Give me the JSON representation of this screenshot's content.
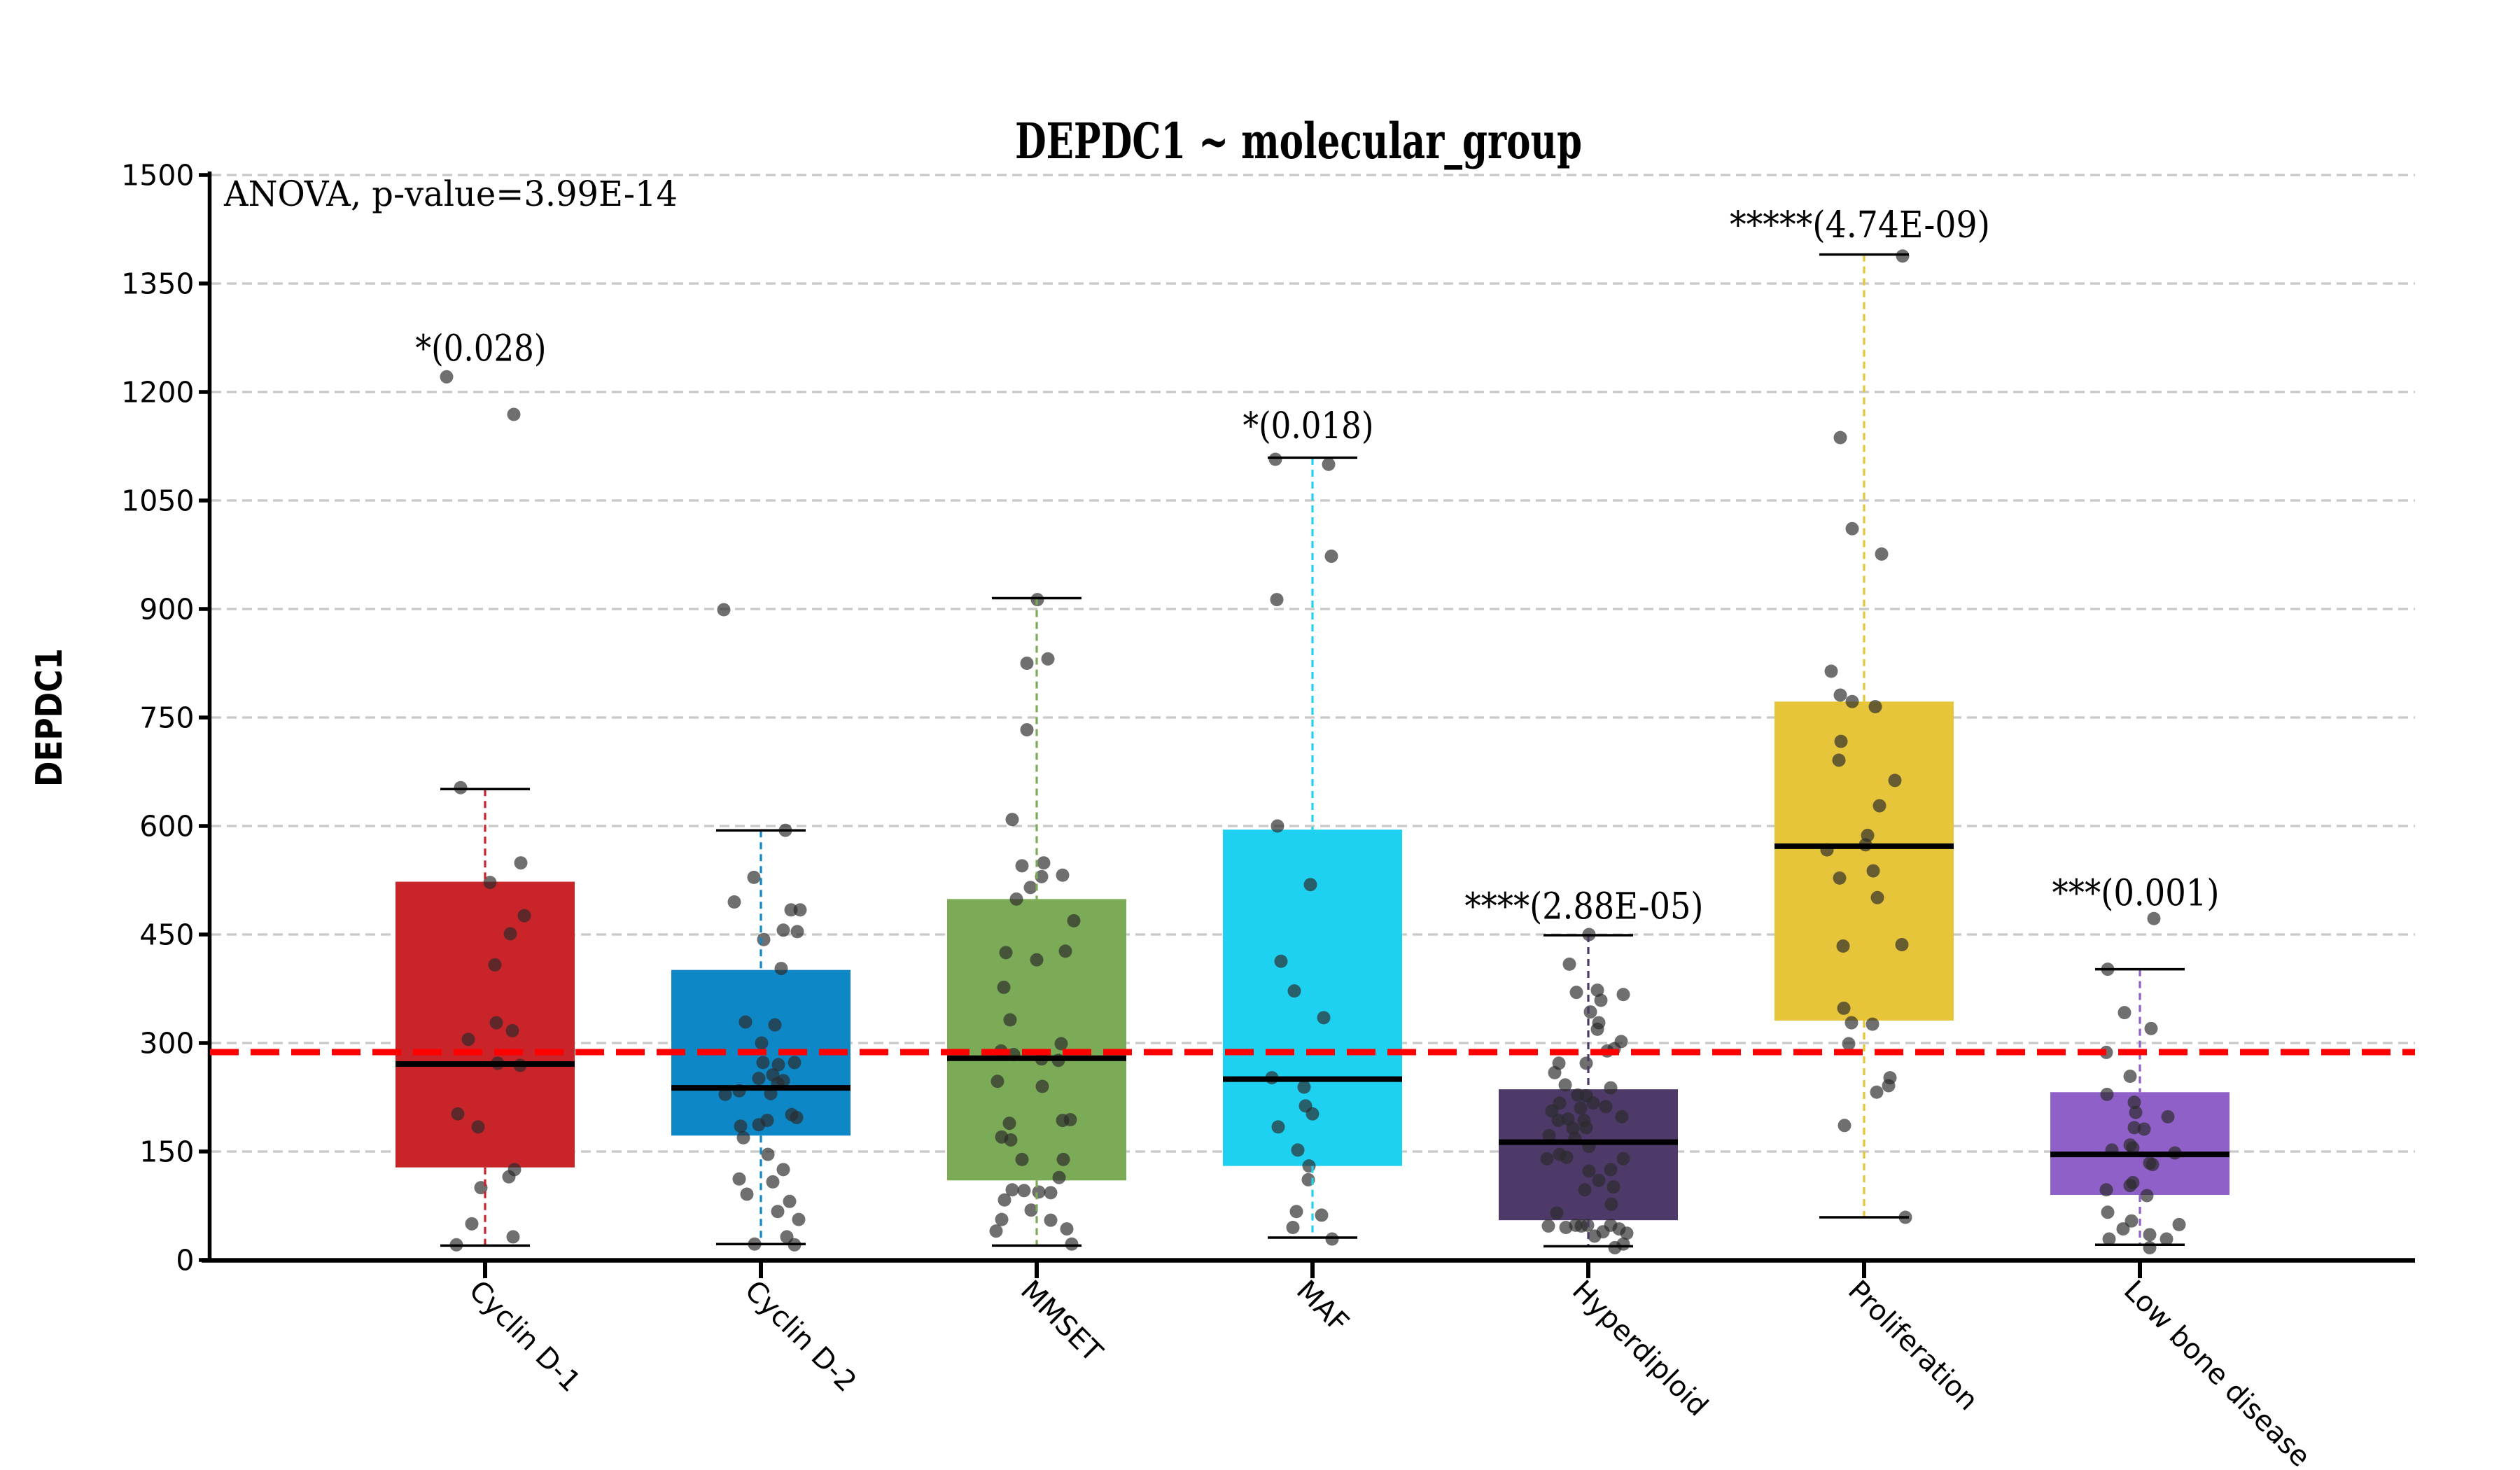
{
  "figure": {
    "background": "#ffffff",
    "title": "DEPDC1 ~ molecular_group",
    "anova_note": "ANOVA, p-value=3.99E-14",
    "y_axis_label": "DEPDC1"
  },
  "chart_data": {
    "type": "box",
    "title": "DEPDC1 ~ molecular_group",
    "subtitle": "",
    "xlabel": "",
    "ylabel": "DEPDC1",
    "anova_note": "ANOVA, p-value=3.99E-14",
    "ylim": [
      0,
      1500
    ],
    "ytick_step": 150,
    "ytick_labels": [
      "0",
      "150",
      "300",
      "450",
      "600",
      "750",
      "900",
      "1050",
      "1200",
      "1350",
      "1500"
    ],
    "grid": true,
    "grid_color": "#c8c8c8",
    "legend": "none",
    "mean_line": {
      "value": 287.5,
      "color": "#fe0000",
      "style": "dashed"
    },
    "point_style": {
      "color": "#2b2b2b",
      "opacity": 0.68,
      "radius": 9.5
    },
    "categories": [
      "Cyclin D-1",
      "Cyclin D-2",
      "MMSET",
      "MAF",
      "Hyperdiploid",
      "Proliferation",
      "Low bone disease"
    ],
    "groups": [
      {
        "name": "Cyclin D-1",
        "color": "#c9242a",
        "whisker_low": 20,
        "q1": 128,
        "median": 271,
        "q3": 523,
        "whisker_high": 651,
        "significance": "*(0.028)",
        "sig_y": 1243,
        "points": [
          [
            -55,
            1221
          ],
          [
            41,
            1169
          ],
          [
            -35,
            653
          ],
          [
            51,
            549
          ],
          [
            7,
            522
          ],
          [
            56,
            476
          ],
          [
            36,
            451
          ],
          [
            14,
            408
          ],
          [
            16,
            328
          ],
          [
            39,
            317
          ],
          [
            -24,
            305
          ],
          [
            18,
            272
          ],
          [
            50,
            269
          ],
          [
            -39,
            202
          ],
          [
            -10,
            184
          ],
          [
            42,
            125
          ],
          [
            34,
            115
          ],
          [
            -6,
            100
          ],
          [
            -19,
            50
          ],
          [
            40,
            32
          ],
          [
            -41,
            21
          ]
        ]
      },
      {
        "name": "Cyclin D-2",
        "color": "#0e87c6",
        "whisker_low": 22,
        "q1": 172,
        "median": 238,
        "q3": 401,
        "whisker_high": 594,
        "significance": null,
        "sig_y": null,
        "points": [
          [
            -53,
            899
          ],
          [
            35,
            594
          ],
          [
            -10,
            529
          ],
          [
            -38,
            495
          ],
          [
            43,
            484
          ],
          [
            56,
            484
          ],
          [
            32,
            456
          ],
          [
            52,
            454
          ],
          [
            4,
            443
          ],
          [
            29,
            403
          ],
          [
            -22,
            329
          ],
          [
            20,
            325
          ],
          [
            1,
            300
          ],
          [
            3,
            273
          ],
          [
            25,
            270
          ],
          [
            48,
            273
          ],
          [
            17,
            256
          ],
          [
            32,
            248
          ],
          [
            -3,
            251
          ],
          [
            24,
            244
          ],
          [
            -51,
            229
          ],
          [
            -31,
            234
          ],
          [
            14,
            230
          ],
          [
            44,
            201
          ],
          [
            51,
            197
          ],
          [
            9,
            193
          ],
          [
            -3,
            187
          ],
          [
            -29,
            185
          ],
          [
            -25,
            169
          ],
          [
            10,
            146
          ],
          [
            32,
            125
          ],
          [
            -31,
            112
          ],
          [
            17,
            108
          ],
          [
            -20,
            91
          ],
          [
            41,
            81
          ],
          [
            24,
            67
          ],
          [
            54,
            56
          ],
          [
            37,
            32
          ],
          [
            48,
            21
          ],
          [
            -9,
            22
          ]
        ]
      },
      {
        "name": "MMSET",
        "color": "#7cab58",
        "whisker_low": 20,
        "q1": 110,
        "median": 279,
        "q3": 499,
        "whisker_high": 915,
        "significance": null,
        "sig_y": null,
        "points": [
          [
            1,
            913
          ],
          [
            -14,
            825
          ],
          [
            16,
            831
          ],
          [
            -14,
            733
          ],
          [
            -35,
            609
          ],
          [
            -21,
            545
          ],
          [
            10,
            549
          ],
          [
            7,
            530
          ],
          [
            37,
            532
          ],
          [
            -9,
            515
          ],
          [
            -29,
            499
          ],
          [
            53,
            469
          ],
          [
            -44,
            425
          ],
          [
            41,
            427
          ],
          [
            0,
            415
          ],
          [
            -47,
            377
          ],
          [
            -38,
            332
          ],
          [
            -51,
            289
          ],
          [
            -33,
            284
          ],
          [
            35,
            299
          ],
          [
            7,
            278
          ],
          [
            31,
            276
          ],
          [
            -56,
            247
          ],
          [
            8,
            240
          ],
          [
            -39,
            189
          ],
          [
            37,
            193
          ],
          [
            48,
            194
          ],
          [
            -50,
            170
          ],
          [
            -37,
            166
          ],
          [
            -21,
            139
          ],
          [
            38,
            139
          ],
          [
            32,
            114
          ],
          [
            -35,
            97
          ],
          [
            -18,
            96
          ],
          [
            3,
            94
          ],
          [
            20,
            93
          ],
          [
            -46,
            83
          ],
          [
            -8,
            69
          ],
          [
            -50,
            56
          ],
          [
            20,
            55
          ],
          [
            -58,
            40
          ],
          [
            43,
            43
          ],
          [
            50,
            22
          ]
        ]
      },
      {
        "name": "MAF",
        "color": "#1fd1f1",
        "whisker_low": 31,
        "q1": 130,
        "median": 250,
        "q3": 595,
        "whisker_high": 1109,
        "significance": "*(0.018)",
        "sig_y": 1136,
        "points": [
          [
            -53,
            1107
          ],
          [
            23,
            1100
          ],
          [
            27,
            973
          ],
          [
            -51,
            913
          ],
          [
            -50,
            600
          ],
          [
            -3,
            519
          ],
          [
            -45,
            413
          ],
          [
            -26,
            372
          ],
          [
            16,
            335
          ],
          [
            -58,
            252
          ],
          [
            -12,
            239
          ],
          [
            -10,
            213
          ],
          [
            0,
            202
          ],
          [
            -49,
            184
          ],
          [
            -21,
            152
          ],
          [
            -5,
            130
          ],
          [
            -6,
            111
          ],
          [
            -23,
            67
          ],
          [
            -28,
            45
          ],
          [
            13,
            62
          ],
          [
            28,
            29
          ]
        ]
      },
      {
        "name": "Hyperdiploid",
        "color": "#4e3a69",
        "whisker_low": 19,
        "q1": 55,
        "median": 163,
        "q3": 236,
        "whisker_high": 449,
        "significance": "****(2.88E-05)",
        "sig_y": 472,
        "points": [
          [
            1,
            450
          ],
          [
            -27,
            409
          ],
          [
            -17,
            370
          ],
          [
            13,
            373
          ],
          [
            50,
            367
          ],
          [
            18,
            359
          ],
          [
            3,
            343
          ],
          [
            15,
            328
          ],
          [
            13,
            319
          ],
          [
            47,
            302
          ],
          [
            27,
            289
          ],
          [
            37,
            292
          ],
          [
            -42,
            272
          ],
          [
            -3,
            272
          ],
          [
            -48,
            259
          ],
          [
            -33,
            242
          ],
          [
            -15,
            228
          ],
          [
            -3,
            227
          ],
          [
            32,
            238
          ],
          [
            -41,
            217
          ],
          [
            -52,
            206
          ],
          [
            -43,
            193
          ],
          [
            -29,
            195
          ],
          [
            -11,
            210
          ],
          [
            -6,
            193
          ],
          [
            7,
            217
          ],
          [
            25,
            212
          ],
          [
            48,
            198
          ],
          [
            -22,
            182
          ],
          [
            -3,
            183
          ],
          [
            -56,
            172
          ],
          [
            -19,
            168
          ],
          [
            1,
            157
          ],
          [
            -59,
            140
          ],
          [
            -41,
            146
          ],
          [
            -31,
            142
          ],
          [
            50,
            140
          ],
          [
            1,
            123
          ],
          [
            32,
            125
          ],
          [
            15,
            110
          ],
          [
            -5,
            97
          ],
          [
            36,
            101
          ],
          [
            33,
            77
          ],
          [
            -45,
            65
          ],
          [
            -57,
            47
          ],
          [
            -32,
            45
          ],
          [
            -18,
            48
          ],
          [
            -10,
            47
          ],
          [
            -1,
            48
          ],
          [
            9,
            33
          ],
          [
            21,
            39
          ],
          [
            32,
            48
          ],
          [
            44,
            43
          ],
          [
            55,
            37
          ],
          [
            50,
            22
          ],
          [
            38,
            17
          ]
        ]
      },
      {
        "name": "Proliferation",
        "color": "#e7c53a",
        "whisker_low": 59,
        "q1": 331,
        "median": 572,
        "q3": 772,
        "whisker_high": 1390,
        "significance": "*****(4.74E-09)",
        "sig_y": 1414,
        "points": [
          [
            55,
            1388
          ],
          [
            -34,
            1137
          ],
          [
            -17,
            1011
          ],
          [
            25,
            976
          ],
          [
            -47,
            814
          ],
          [
            -34,
            781
          ],
          [
            -17,
            772
          ],
          [
            16,
            765
          ],
          [
            -33,
            717
          ],
          [
            -36,
            691
          ],
          [
            44,
            663
          ],
          [
            22,
            628
          ],
          [
            5,
            587
          ],
          [
            -53,
            567
          ],
          [
            2,
            574
          ],
          [
            -35,
            528
          ],
          [
            13,
            538
          ],
          [
            19,
            501
          ],
          [
            -30,
            434
          ],
          [
            54,
            436
          ],
          [
            -29,
            348
          ],
          [
            -18,
            328
          ],
          [
            12,
            326
          ],
          [
            -22,
            299
          ],
          [
            37,
            252
          ],
          [
            35,
            241
          ],
          [
            18,
            232
          ],
          [
            -28,
            186
          ],
          [
            59,
            59
          ]
        ]
      },
      {
        "name": "Low bone disease",
        "color": "#8e60c8",
        "whisker_low": 21,
        "q1": 90,
        "median": 146,
        "q3": 232,
        "whisker_high": 402,
        "significance": "***(0.001)",
        "sig_y": 490,
        "points": [
          [
            20,
            472
          ],
          [
            -46,
            402
          ],
          [
            -22,
            342
          ],
          [
            16,
            320
          ],
          [
            -48,
            287
          ],
          [
            -14,
            254
          ],
          [
            -47,
            229
          ],
          [
            -8,
            218
          ],
          [
            -6,
            204
          ],
          [
            40,
            198
          ],
          [
            -8,
            183
          ],
          [
            6,
            181
          ],
          [
            -14,
            159
          ],
          [
            -10,
            155
          ],
          [
            -40,
            152
          ],
          [
            50,
            148
          ],
          [
            14,
            134
          ],
          [
            18,
            132
          ],
          [
            -10,
            107
          ],
          [
            -14,
            103
          ],
          [
            -48,
            97
          ],
          [
            10,
            89
          ],
          [
            -46,
            66
          ],
          [
            -12,
            54
          ],
          [
            -24,
            43
          ],
          [
            -44,
            29
          ],
          [
            14,
            35
          ],
          [
            38,
            29
          ],
          [
            56,
            49
          ],
          [
            14,
            17
          ]
        ]
      }
    ]
  }
}
